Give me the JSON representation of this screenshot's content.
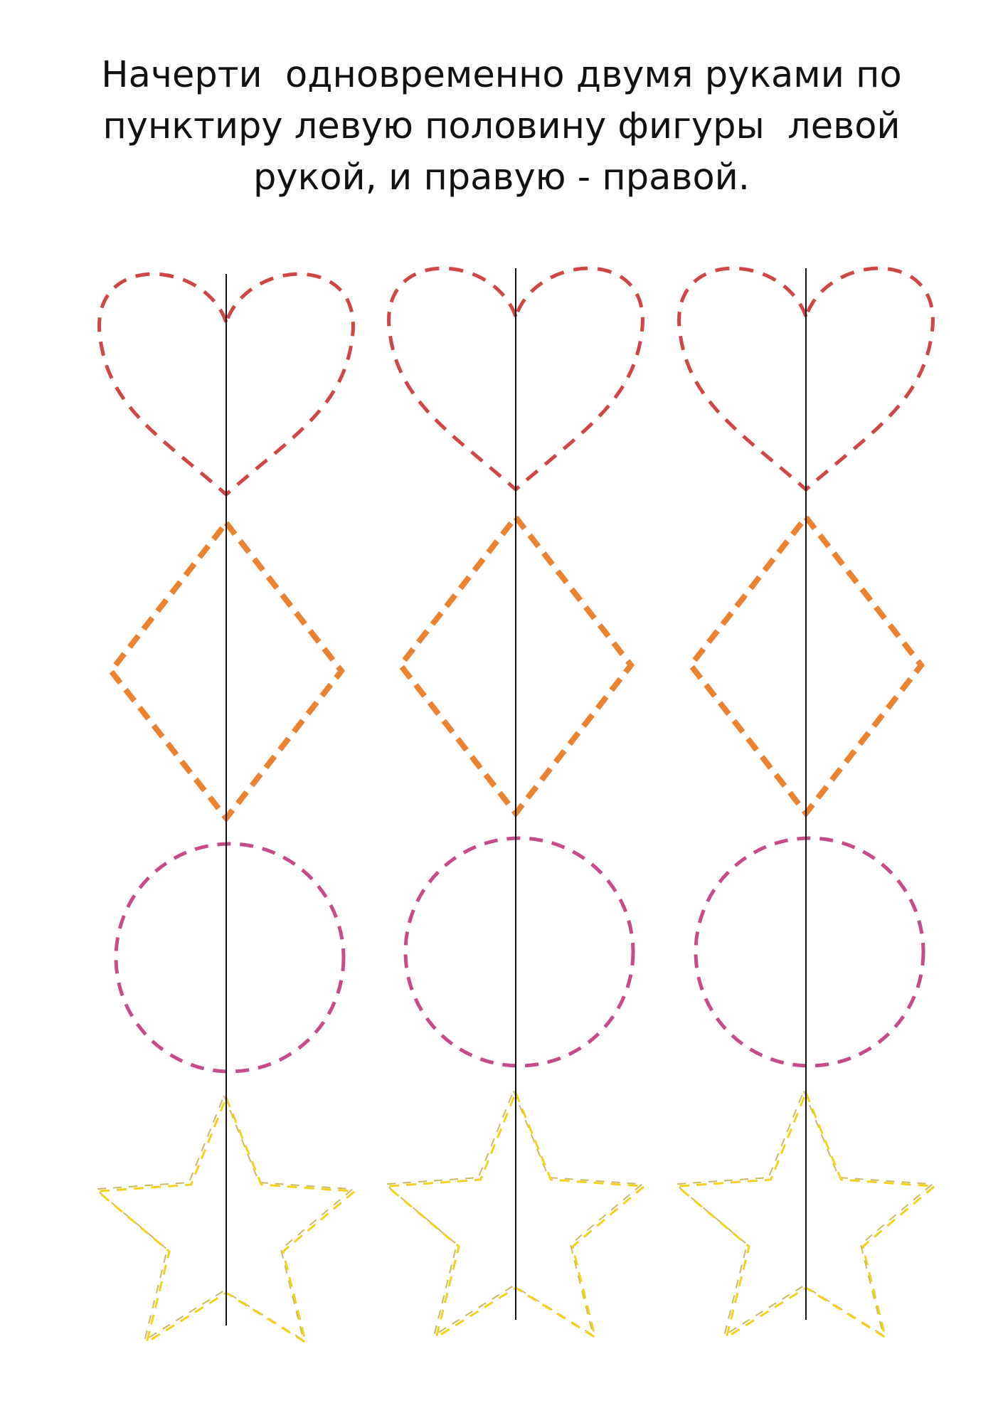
{
  "instruction": {
    "line1": "Начерти  одновременно двумя руками по",
    "line2": "пунктиру левую половину фигуры  левой",
    "line3": "рукой, и правую - правой."
  },
  "colors": {
    "heart": "#d14545",
    "diamond": "#ec8230",
    "circle": "#c84a88",
    "star": "#f2d21a",
    "star_shadow": "#a88a00",
    "axis": "#111111",
    "text": "#111111",
    "background": "#ffffff"
  },
  "columns": [
    {
      "figures": [
        "heart",
        "diamond",
        "circle",
        "star"
      ]
    },
    {
      "figures": [
        "heart",
        "diamond",
        "circle",
        "star"
      ]
    },
    {
      "figures": [
        "heart",
        "diamond",
        "circle",
        "star"
      ]
    }
  ]
}
